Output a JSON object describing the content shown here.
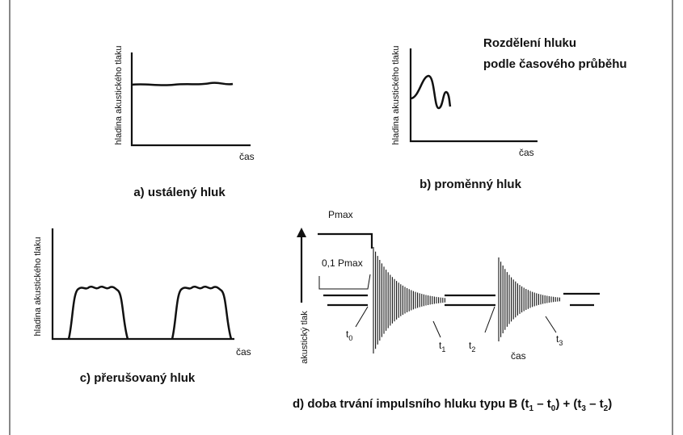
{
  "title_lines": [
    "Rozdělení hluku",
    "podle časového průběhu"
  ],
  "panel_a": {
    "y_label": "hladina akustického tlaku",
    "x_label": "čas",
    "caption": "a) ustálený hluk"
  },
  "panel_b": {
    "y_label": "hladina akustického tlaku",
    "x_label": "čas",
    "caption": "b) proměnný hluk"
  },
  "panel_c": {
    "y_label": "hladina akustického tlaku",
    "x_label": "čas",
    "caption": "c) přerušovaný hluk"
  },
  "panel_d": {
    "pmax": "Pmax",
    "pmax_01": "0,1 Pmax",
    "y_label": "akustický tlak",
    "x_label": "čas",
    "t_labels": [
      {
        "base": "t",
        "sub": "0"
      },
      {
        "base": "t",
        "sub": "1"
      },
      {
        "base": "t",
        "sub": "2"
      },
      {
        "base": "t",
        "sub": "3"
      }
    ],
    "caption_parts": [
      "d) doba trvání impulsního hluku typu B (t",
      "1",
      " – t",
      "0",
      ") + (t",
      "3",
      " – t",
      "2",
      ")"
    ]
  }
}
